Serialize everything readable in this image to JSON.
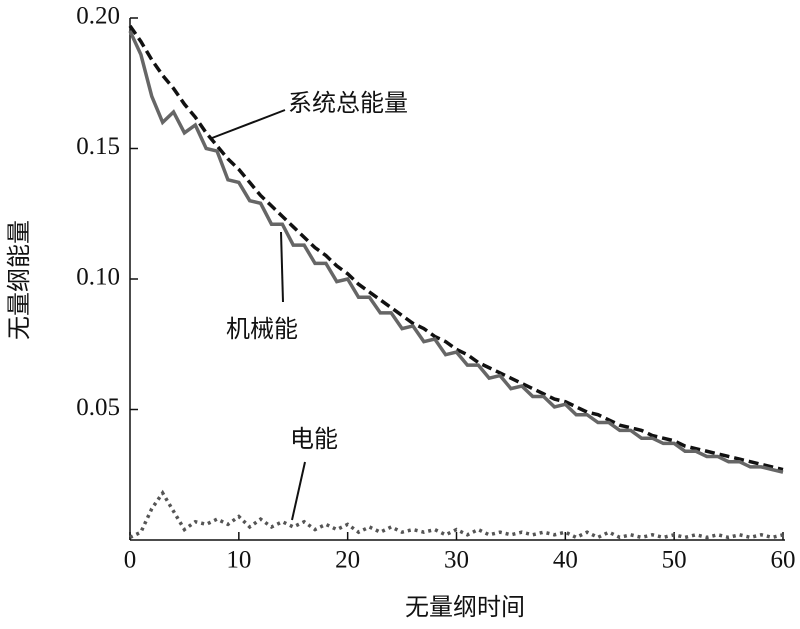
{
  "chart_data": {
    "type": "line",
    "x_label": "无量纲时间",
    "y_label": "无量纲能量",
    "x": [
      0,
      1,
      2,
      3,
      4,
      5,
      6,
      7,
      8,
      9,
      10,
      11,
      12,
      13,
      14,
      15,
      16,
      17,
      18,
      19,
      20,
      21,
      22,
      23,
      24,
      25,
      26,
      27,
      28,
      29,
      30,
      31,
      32,
      33,
      34,
      35,
      36,
      37,
      38,
      39,
      40,
      41,
      42,
      43,
      44,
      45,
      46,
      47,
      48,
      49,
      50,
      51,
      52,
      53,
      54,
      55,
      56,
      57,
      58,
      59,
      60
    ],
    "series": [
      {
        "name": "系统总能量",
        "color": "#111111",
        "dash": "dashed",
        "values": [
          0.197,
          0.191,
          0.184,
          0.178,
          0.173,
          0.167,
          0.162,
          0.156,
          0.151,
          0.146,
          0.142,
          0.137,
          0.132,
          0.128,
          0.124,
          0.12,
          0.116,
          0.112,
          0.109,
          0.105,
          0.102,
          0.098,
          0.095,
          0.092,
          0.089,
          0.086,
          0.083,
          0.081,
          0.078,
          0.076,
          0.073,
          0.071,
          0.068,
          0.066,
          0.064,
          0.062,
          0.06,
          0.058,
          0.056,
          0.054,
          0.053,
          0.051,
          0.049,
          0.048,
          0.046,
          0.044,
          0.043,
          0.042,
          0.04,
          0.039,
          0.038,
          0.036,
          0.035,
          0.034,
          0.033,
          0.032,
          0.031,
          0.03,
          0.029,
          0.028,
          0.027
        ]
      },
      {
        "name": "机械能",
        "color": "#666666",
        "dash": "solid",
        "values": [
          0.195,
          0.186,
          0.17,
          0.16,
          0.164,
          0.156,
          0.159,
          0.15,
          0.149,
          0.138,
          0.137,
          0.13,
          0.129,
          0.121,
          0.121,
          0.113,
          0.113,
          0.106,
          0.106,
          0.099,
          0.1,
          0.093,
          0.093,
          0.087,
          0.087,
          0.081,
          0.082,
          0.076,
          0.077,
          0.071,
          0.072,
          0.067,
          0.067,
          0.062,
          0.063,
          0.058,
          0.059,
          0.055,
          0.055,
          0.051,
          0.052,
          0.048,
          0.048,
          0.045,
          0.045,
          0.042,
          0.042,
          0.039,
          0.039,
          0.037,
          0.037,
          0.034,
          0.034,
          0.032,
          0.032,
          0.03,
          0.03,
          0.028,
          0.028,
          0.027,
          0.026
        ]
      },
      {
        "name": "电能",
        "color": "#555555",
        "dash": "dotted",
        "values": [
          0.001,
          0.003,
          0.012,
          0.018,
          0.011,
          0.004,
          0.007,
          0.006,
          0.008,
          0.006,
          0.009,
          0.005,
          0.008,
          0.005,
          0.007,
          0.005,
          0.007,
          0.004,
          0.006,
          0.004,
          0.006,
          0.003,
          0.005,
          0.003,
          0.005,
          0.003,
          0.004,
          0.003,
          0.004,
          0.002,
          0.004,
          0.002,
          0.004,
          0.002,
          0.003,
          0.002,
          0.003,
          0.002,
          0.003,
          0.002,
          0.003,
          0.001,
          0.003,
          0.001,
          0.003,
          0.001,
          0.002,
          0.001,
          0.002,
          0.001,
          0.002,
          0.001,
          0.002,
          0.001,
          0.002,
          0.001,
          0.002,
          0.001,
          0.002,
          0.001,
          0.002
        ]
      }
    ],
    "xlim": [
      0,
      60
    ],
    "xticks": [
      0,
      10,
      20,
      30,
      40,
      50,
      60
    ],
    "ylim": [
      0,
      0.2
    ],
    "yticks": [
      0.05,
      {
        "value": 0.1,
        "label": "0.10"
      },
      0.15,
      {
        "value": 0.2,
        "label": "0.20"
      }
    ]
  }
}
